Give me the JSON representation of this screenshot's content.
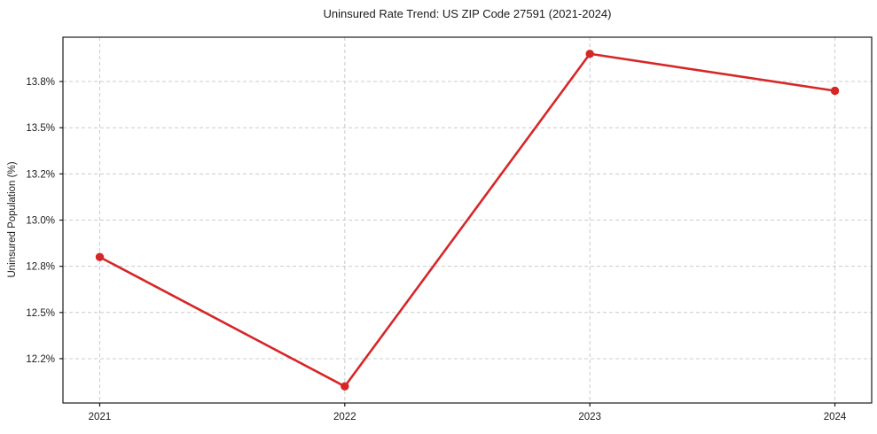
{
  "chart_data": {
    "type": "line",
    "title": "Uninsured Rate Trend: US ZIP Code 27591 (2021-2024)",
    "xlabel": "",
    "ylabel": "Uninsured Population (%)",
    "x": [
      2021,
      2022,
      2023,
      2024
    ],
    "x_tick_labels": [
      "2021",
      "2022",
      "2023",
      "2024"
    ],
    "series": [
      {
        "name": "Uninsured rate",
        "values": [
          12.8,
          12.1,
          13.9,
          13.7
        ]
      }
    ],
    "y_ticks": [
      {
        "value": 12.25,
        "label": "12.2%"
      },
      {
        "value": 12.5,
        "label": "12.5%"
      },
      {
        "value": 12.75,
        "label": "12.8%"
      },
      {
        "value": 13.0,
        "label": "13.0%"
      },
      {
        "value": 13.25,
        "label": "13.2%"
      },
      {
        "value": 13.5,
        "label": "13.5%"
      },
      {
        "value": 13.75,
        "label": "13.8%"
      }
    ],
    "xlim": [
      2020.85,
      2024.15
    ],
    "ylim": [
      12.01,
      13.99
    ],
    "grid": true,
    "grid_style": "dashed",
    "legend": "none",
    "line_color": "#d62728",
    "marker": "circle",
    "grid_color": "#cccccc",
    "axis_color": "#1a1a1a",
    "text_color": "#1a1a1a",
    "background_color": "#ffffff"
  }
}
